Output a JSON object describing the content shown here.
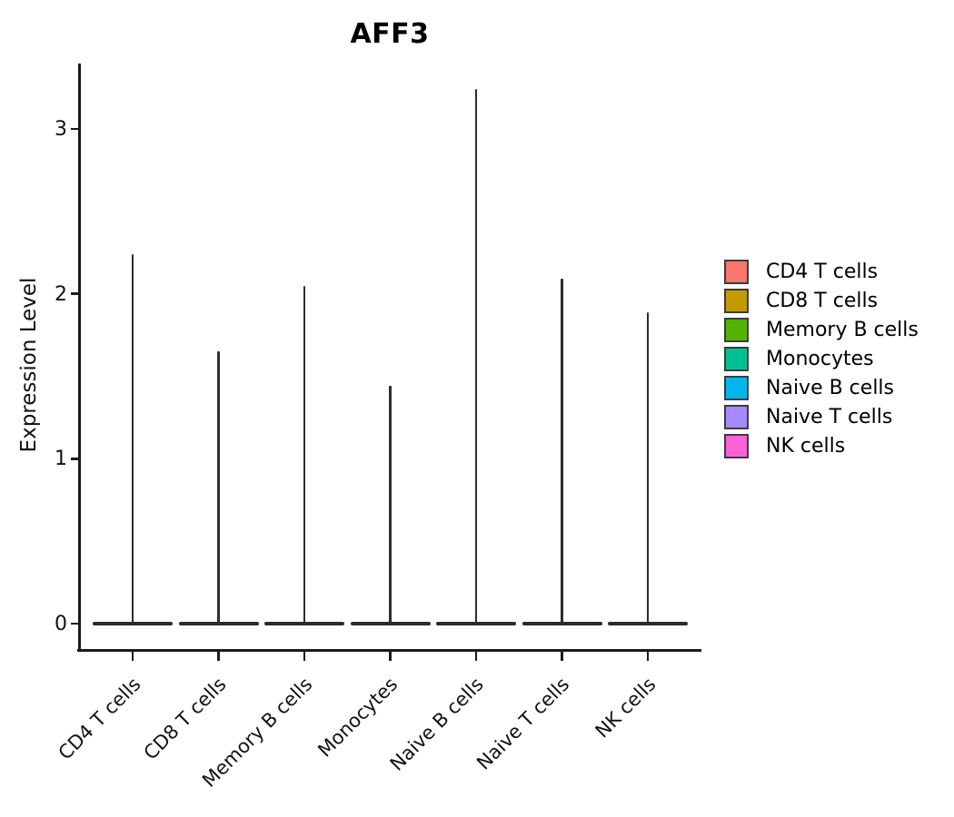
{
  "title": "AFF3",
  "chart_data": {
    "type": "violin",
    "title": "AFF3",
    "ylabel": "Expression Level",
    "categories": [
      "CD4 T cells",
      "CD8 T cells",
      "Memory B cells",
      "Monocytes",
      "Naive B cells",
      "Naive T cells",
      "NK cells"
    ],
    "colors": [
      "#F8766D",
      "#C49A00",
      "#53B400",
      "#00C094",
      "#00B6EB",
      "#A58AFF",
      "#FB61D7"
    ],
    "max_expression": [
      2.24,
      1.65,
      2.05,
      1.44,
      3.24,
      2.09,
      1.89
    ],
    "violin_shape": "each violin collapses to a wide flat bar at 0 with a single thin spike rising to its max expression value",
    "y_ticks": [
      "0",
      "1",
      "2",
      "3"
    ],
    "y_tick_values": [
      0,
      1,
      2,
      3
    ],
    "ylim": [
      -0.16,
      3.4
    ],
    "grid": "off",
    "legend_position": "right",
    "outline_color": "#2e2e2e"
  },
  "legend": {
    "items": [
      {
        "label": "CD4 T cells",
        "color": "#F8766D"
      },
      {
        "label": "CD8 T cells",
        "color": "#C49A00"
      },
      {
        "label": "Memory B cells",
        "color": "#53B400"
      },
      {
        "label": "Monocytes",
        "color": "#00C094"
      },
      {
        "label": "Naive B cells",
        "color": "#00B6EB"
      },
      {
        "label": "Naive T cells",
        "color": "#A58AFF"
      },
      {
        "label": "NK cells",
        "color": "#FB61D7"
      }
    ]
  }
}
